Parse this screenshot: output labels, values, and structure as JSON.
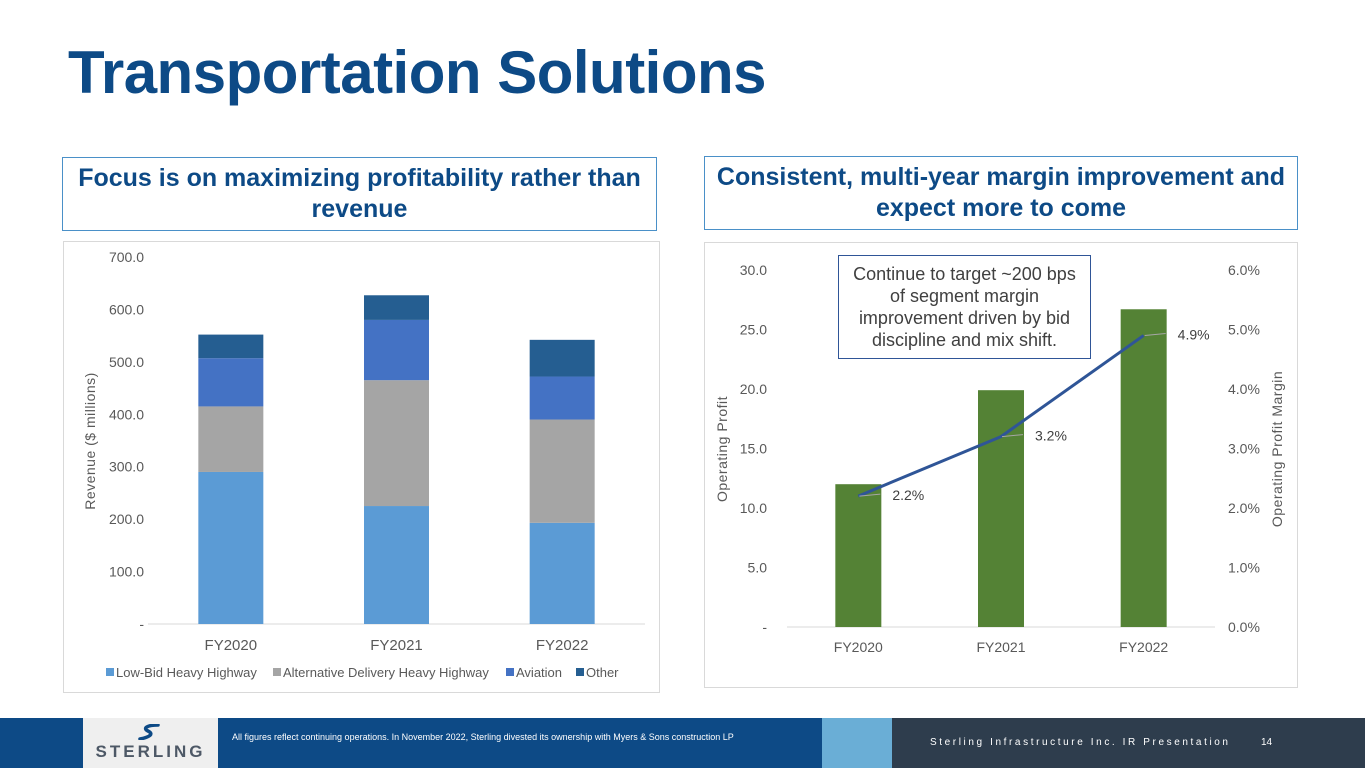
{
  "title": "Transportation Solutions",
  "left_callout": "Focus is on maximizing profitability rather than revenue",
  "right_callout": "Consistent, multi-year margin improvement and expect more to come",
  "note": "Continue to target ~200 bps of segment margin improvement driven by bid discipline and mix shift.",
  "footer": {
    "logo": "STERLING",
    "footnote": "All figures reflect continuing operations. In November 2022, Sterling divested its ownership with Myers  & Sons construction LP",
    "presentation": "Sterling Infrastructure Inc. IR Presentation",
    "page": "14"
  },
  "colors": {
    "brand_blue": "#0d4a86",
    "low_bid": "#5b9bd5",
    "alt_delivery": "#a5a5a5",
    "aviation": "#4472c4",
    "other": "#255e91",
    "op_profit": "#548235",
    "margin_line": "#2f5597"
  },
  "chart_data": [
    {
      "type": "bar",
      "stacked": true,
      "title": "",
      "xlabel": "",
      "ylabel": "Revenue ($ millions)",
      "categories": [
        "FY2020",
        "FY2021",
        "FY2022"
      ],
      "ylim": [
        0,
        700
      ],
      "yticks": [
        "-",
        "100.0",
        "200.0",
        "300.0",
        "400.0",
        "500.0",
        "600.0",
        "700.0"
      ],
      "series": [
        {
          "name": "Low-Bid Heavy Highway",
          "values": [
            290,
            225,
            193
          ]
        },
        {
          "name": "Alternative Delivery Heavy Highway",
          "values": [
            125,
            240,
            197
          ]
        },
        {
          "name": "Aviation",
          "values": [
            92,
            115,
            82
          ]
        },
        {
          "name": "Other",
          "values": [
            45,
            47,
            70
          ]
        }
      ],
      "legend": "bottom"
    },
    {
      "type": "bar",
      "combo": true,
      "title": "",
      "xlabel": "",
      "ylabel": "Operating Profit",
      "y2label": "Operating Profit Margin",
      "categories": [
        "FY2020",
        "FY2021",
        "FY2022"
      ],
      "ylim": [
        0,
        30
      ],
      "y2lim": [
        0,
        0.06
      ],
      "yticks": [
        "-",
        "5.0",
        "10.0",
        "15.0",
        "20.0",
        "25.0",
        "30.0"
      ],
      "y2ticks": [
        "0.0%",
        "1.0%",
        "2.0%",
        "3.0%",
        "4.0%",
        "5.0%",
        "6.0%"
      ],
      "series": [
        {
          "name": "Operating Profit",
          "type": "bar",
          "axis": "left",
          "values": [
            12.0,
            19.9,
            26.7
          ]
        },
        {
          "name": "Operating Profit Margin",
          "type": "line",
          "axis": "right",
          "values": [
            0.022,
            0.032,
            0.049
          ],
          "labels": [
            "2.2%",
            "3.2%",
            "4.9%"
          ]
        }
      ]
    }
  ]
}
